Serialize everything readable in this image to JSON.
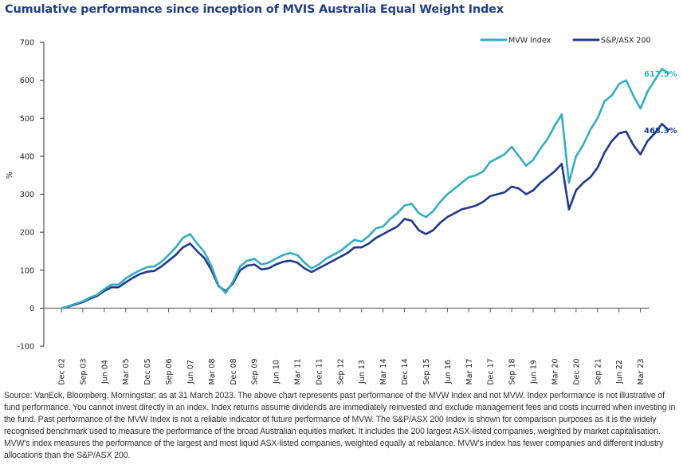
{
  "title": "Cumulative performance since inception of MVIS Australia Equal Weight Index",
  "footnote": "Source: VanEck, Bloomberg, Morningstar; as at 31 March 2023. The above chart represents past performance of the MVW Index and not MVW. Index performance is not illustrative of fund performance. You cannot invest directly in an index. Index returns assume dividends are immediately reinvested and exclude management fees and costs incurred when investing in the fund. Past performance of the MVW Index is not a reliable indicator of future performance of MVW. The S&P/ASX 200 Index is shown for comparison purposes as it is the widely recognised benchmark used to measure the performance of the broad Australian equities market. It includes the 200 largest ASX-listed companies, weighted by market capitalisation. MVW's index measures the performance of the largest and most liquid ASX-listed companies, weighted equally at rebalance. MVW's index has fewer companies and different industry allocations than the S&P/ASX 200.",
  "chart_data": {
    "type": "line",
    "title": "Cumulative performance since inception of MVIS Australia Equal Weight Index",
    "xlabel": "",
    "ylabel": "%",
    "ylim": [
      -100,
      700
    ],
    "yticks": [
      -100,
      0,
      100,
      200,
      300,
      400,
      500,
      600,
      700
    ],
    "xticks": [
      "Dec 02",
      "Sep 03",
      "Jun 04",
      "Mar 05",
      "Dec 05",
      "Sep 06",
      "Jun 07",
      "Mar 08",
      "Dec 08",
      "Sep 09",
      "Jun 10",
      "Mar 11",
      "Dec 11",
      "Sep 12",
      "Jun 13",
      "Mar 14",
      "Dec 14",
      "Sep 15",
      "Jun 16",
      "Mar 17",
      "Dec 17",
      "Sep 18",
      "Jun 19",
      "Mar 20",
      "Dec 20",
      "Sep 21",
      "Jun 22",
      "Mar 23"
    ],
    "x_frequency": "quarterly from Dec 02 to Mar 23",
    "grid": false,
    "legend": "top-right",
    "series": [
      {
        "name": "MVW Index",
        "color": "#33adc4",
        "end_label": "617.5%",
        "values": [
          0,
          5,
          12,
          18,
          28,
          35,
          50,
          62,
          62,
          78,
          90,
          100,
          108,
          110,
          122,
          140,
          160,
          185,
          195,
          170,
          148,
          110,
          60,
          40,
          70,
          110,
          125,
          130,
          115,
          120,
          130,
          140,
          145,
          140,
          120,
          105,
          115,
          130,
          140,
          150,
          165,
          180,
          175,
          190,
          210,
          215,
          235,
          250,
          270,
          275,
          250,
          240,
          255,
          280,
          300,
          315,
          330,
          345,
          350,
          360,
          385,
          395,
          405,
          425,
          400,
          375,
          390,
          420,
          445,
          480,
          510,
          330,
          400,
          430,
          470,
          500,
          545,
          560,
          590,
          600,
          560,
          525,
          570,
          600,
          630,
          617.5
        ]
      },
      {
        "name": "S&P/ASX 200",
        "color": "#1f3a8a",
        "end_label": "468.3%",
        "values": [
          0,
          4,
          10,
          16,
          25,
          32,
          45,
          55,
          55,
          68,
          80,
          90,
          96,
          98,
          110,
          125,
          140,
          160,
          170,
          150,
          132,
          100,
          58,
          45,
          65,
          100,
          112,
          115,
          102,
          105,
          115,
          122,
          125,
          120,
          105,
          95,
          105,
          115,
          125,
          135,
          145,
          160,
          160,
          170,
          185,
          195,
          205,
          215,
          235,
          230,
          205,
          195,
          205,
          225,
          240,
          250,
          260,
          265,
          270,
          280,
          295,
          300,
          305,
          320,
          315,
          300,
          310,
          330,
          345,
          360,
          380,
          260,
          310,
          330,
          345,
          370,
          410,
          440,
          460,
          465,
          430,
          405,
          440,
          460,
          485,
          468.3
        ]
      }
    ]
  }
}
